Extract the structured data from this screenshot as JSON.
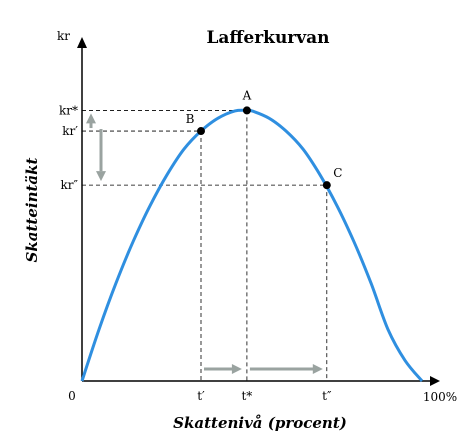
{
  "chart_data": {
    "type": "line",
    "title": "Lafferkurvan",
    "xlabel": "Skattenivå (procent)",
    "ylabel": "Skatteintäkt",
    "x_axis": {
      "origin_label": "0",
      "end_label": "100%",
      "range": [
        0,
        100
      ]
    },
    "y_axis": {
      "top_label": "kr",
      "range": [
        0,
        130
      ]
    },
    "series": [
      {
        "color": "#2f8fe0",
        "x": [
          0,
          5,
          10,
          15,
          20,
          25,
          30,
          35,
          40,
          45,
          48.5,
          50,
          55,
          60,
          65,
          70,
          75,
          80,
          85,
          90,
          95,
          100
        ],
        "y": [
          0,
          20,
          38,
          54,
          68,
          80,
          90,
          97,
          102,
          104.8,
          105,
          104.8,
          102,
          97,
          90,
          80,
          68,
          54,
          38,
          20,
          8,
          0
        ]
      }
    ],
    "points": [
      {
        "label": "A",
        "x": 48.5,
        "y": 105,
        "x_tick": "t*",
        "y_tick": "kr*"
      },
      {
        "label": "B",
        "x": 35,
        "y": 97,
        "x_tick": "t′",
        "y_tick": "kr′"
      },
      {
        "label": "C",
        "x": 72,
        "y": 76,
        "x_tick": "t″",
        "y_tick": "kr″"
      }
    ],
    "arrows_color": "#9aa3a0",
    "grid": false,
    "legend": "none"
  }
}
